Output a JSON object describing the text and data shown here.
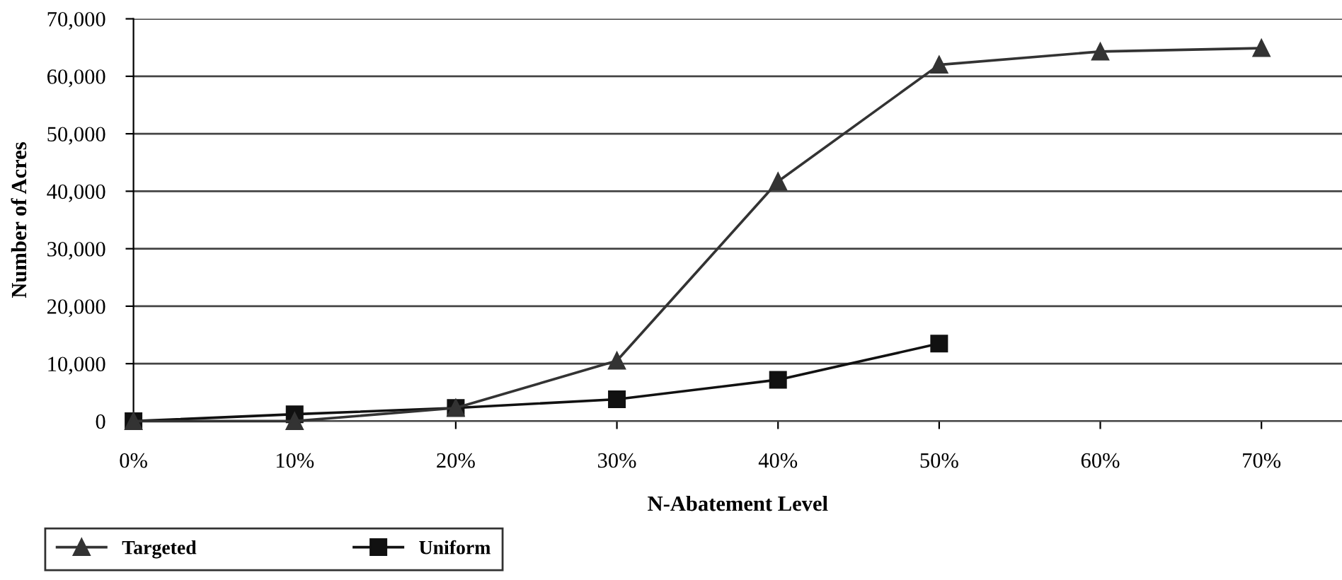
{
  "chart_data": {
    "type": "line",
    "xlabel": "N-Abatement Level",
    "ylabel": "Number of Acres",
    "x": [
      0,
      10,
      20,
      30,
      40,
      50,
      60,
      70
    ],
    "series": [
      {
        "name": "Targeted",
        "color": "#333333",
        "marker": "triangle",
        "values": [
          0,
          0,
          2300,
          10500,
          41700,
          62000,
          64300,
          64900
        ]
      },
      {
        "name": "Uniform",
        "color": "#111111",
        "marker": "square",
        "values": [
          0,
          1200,
          2300,
          3800,
          7200,
          13500,
          null,
          null
        ]
      }
    ],
    "xlim": [
      0,
      75
    ],
    "xticks": [
      {
        "value": 0,
        "label": "0%"
      },
      {
        "value": 10,
        "label": "10%"
      },
      {
        "value": 20,
        "label": "20%"
      },
      {
        "value": 30,
        "label": "30%"
      },
      {
        "value": 40,
        "label": "40%"
      },
      {
        "value": 50,
        "label": "50%"
      },
      {
        "value": 60,
        "label": "60%"
      },
      {
        "value": 70,
        "label": "70%"
      }
    ],
    "ylim": [
      0,
      70000
    ],
    "yticks": [
      {
        "value": 0,
        "label": "0"
      },
      {
        "value": 10000,
        "label": "10,000"
      },
      {
        "value": 20000,
        "label": "20,000"
      },
      {
        "value": 30000,
        "label": "30,000"
      },
      {
        "value": 40000,
        "label": "40,000"
      },
      {
        "value": 50000,
        "label": "50,000"
      },
      {
        "value": 60000,
        "label": "60,000"
      },
      {
        "value": 70000,
        "label": "70,000"
      }
    ],
    "grid": "y",
    "legend": "bottom left",
    "line_style": "solid"
  }
}
